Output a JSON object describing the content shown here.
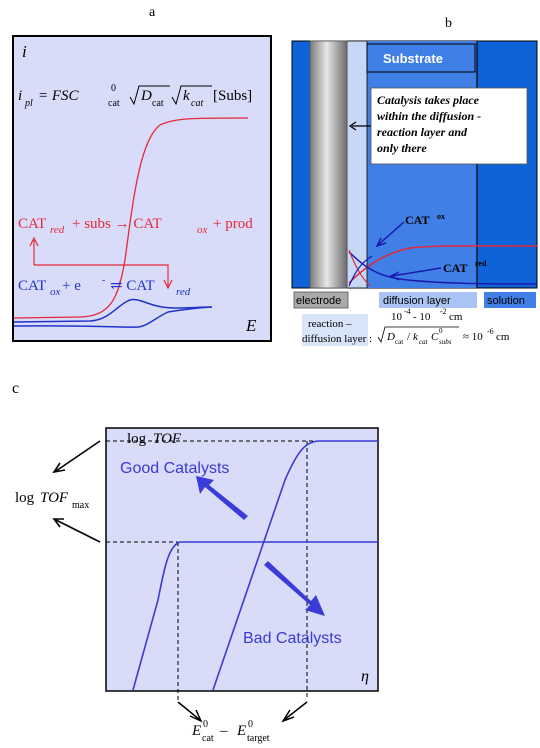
{
  "panel_a": {
    "label": "a",
    "i_axis": "i",
    "e_axis": "E",
    "eq_ipl": {
      "lhs": "i",
      "lhs_sub": "pl",
      "eq": " = FSC",
      "c_sup": "0",
      "c_sub": "cat",
      "sqrt1": "D",
      "sqrt1_sub": "cat",
      "sqrt2": "k",
      "sqrt2_sub": "cat",
      "subs": "[Subs]"
    },
    "rxn_red": {
      "cat": "CAT",
      "red": "red",
      "mid": " + subs → CAT",
      "ox": "ox",
      "end": " + prod"
    },
    "rxn_ox": {
      "cat": "CAT",
      "ox": "ox",
      "mid": "  + e",
      "sup": "-",
      "arrow": " ⇌  CAT",
      "red": "red"
    },
    "colors": {
      "bg": "#d8dcf8",
      "red": "#e5283a",
      "blue": "#2233cc"
    }
  },
  "panel_b": {
    "label": "b",
    "substrate": "Substrate",
    "catalysis_text": [
      "Catalysis takes place",
      "within the diffusion -",
      "reaction layer  and",
      "only there"
    ],
    "cat_ox": "CAT",
    "cat_ox_sup": "ox",
    "cat_red": "CAT",
    "cat_red_sup": "red",
    "electrode": "electrode",
    "diffusion_layer": "diffusion  layer",
    "solution": "solution",
    "thickness": "10",
    "thickness_exp1": "-4",
    "thickness_mid": " - 10",
    "thickness_exp2": "-2",
    "thickness_unit": " cm",
    "reaction_layer": [
      "reaction –",
      "diffusion layer :"
    ],
    "rl_formula": "√D   / k   C    ≈ 10",
    "rl_exp": "-6",
    "rl_unit": " cm",
    "colors": {
      "electrode": "#a9a9a9",
      "light": "#a9c4f2",
      "mid": "#3f7fe6",
      "dark": "#0e63d8"
    }
  },
  "panel_c": {
    "label": "c",
    "y_axis": "log",
    "y_axis_it": "TOF",
    "good": "Good Catalysts",
    "bad": "Bad Catalysts",
    "x_axis": "η",
    "max_label": "log",
    "max_label_it": "TOF",
    "max_sub": "max",
    "e_cat": "E",
    "e_cat_sup": "0",
    "e_cat_sub": "cat",
    "e_minus": " – ",
    "e_target": "E",
    "e_target_sup": "0",
    "e_target_sub": "target",
    "colors": {
      "bg": "#d8dcf8",
      "line": "#3a3ad6",
      "arrow": "#3b3bd8"
    }
  }
}
